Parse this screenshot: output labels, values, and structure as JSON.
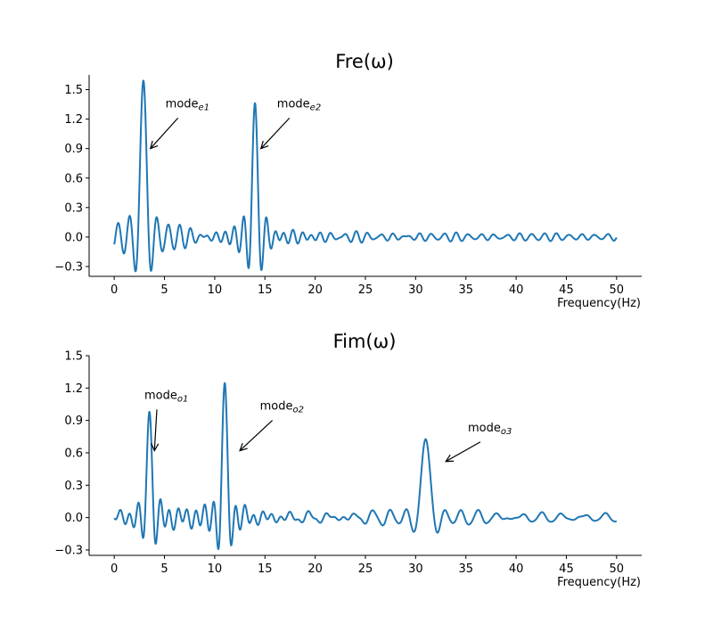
{
  "chart_data": [
    {
      "type": "line",
      "title": "Fre(ω)",
      "xlabel": "Frequency(Hz)",
      "ylabel": "",
      "xlim": [
        -2.5,
        52.5
      ],
      "ylim": [
        -0.4,
        1.65
      ],
      "xticks": [
        0,
        5,
        10,
        15,
        20,
        25,
        30,
        35,
        40,
        45,
        50
      ],
      "yticks": [
        -0.3,
        0.0,
        0.3,
        0.6,
        0.9,
        1.2,
        1.5
      ],
      "ytick_labels": [
        "−0.3",
        "0.0",
        "0.3",
        "0.6",
        "0.9",
        "1.2",
        "1.5"
      ],
      "series_color": "#1f77b4",
      "peaks": [
        {
          "freq": 2.9,
          "amp": 1.55,
          "width": 0.55
        },
        {
          "freq": 14.0,
          "amp": 1.32,
          "width": 0.45
        }
      ],
      "ripple": {
        "amp": 0.03,
        "period": 1.25
      },
      "annotations": [
        {
          "label": "mode",
          "sub": "e1",
          "text_x": 5.1,
          "text_y": 1.32,
          "target_x": 3.6,
          "target_y": 0.9
        },
        {
          "label": "mode",
          "sub": "e2",
          "text_x": 16.2,
          "text_y": 1.32,
          "target_x": 14.6,
          "target_y": 0.9
        }
      ]
    },
    {
      "type": "line",
      "title": "Fim(ω)",
      "xlabel": "Frequency(Hz)",
      "ylabel": "",
      "xlim": [
        -2.5,
        52.5
      ],
      "ylim": [
        -0.35,
        1.5
      ],
      "xticks": [
        0,
        5,
        10,
        15,
        20,
        25,
        30,
        35,
        40,
        45,
        50
      ],
      "yticks": [
        -0.3,
        0.0,
        0.3,
        0.6,
        0.9,
        1.2,
        1.5
      ],
      "ytick_labels": [
        "−0.3",
        "0.0",
        "0.3",
        "0.6",
        "0.9",
        "1.2",
        "1.5"
      ],
      "series_color": "#1f77b4",
      "peaks": [
        {
          "freq": 3.5,
          "amp": 0.98,
          "width": 0.45
        },
        {
          "freq": 11.0,
          "amp": 1.2,
          "width": 0.45
        },
        {
          "freq": 31.0,
          "amp": 0.75,
          "width": 0.8
        }
      ],
      "ripple": {
        "amp": 0.03,
        "period": 2.1
      },
      "annotations": [
        {
          "label": "mode",
          "sub": "o1",
          "text_x": 3.0,
          "text_y": 1.1,
          "target_x": 4.0,
          "target_y": 0.62
        },
        {
          "label": "mode",
          "sub": "o2",
          "text_x": 14.5,
          "text_y": 1.0,
          "target_x": 12.5,
          "target_y": 0.62
        },
        {
          "label": "mode",
          "sub": "o3",
          "text_x": 35.2,
          "text_y": 0.8,
          "target_x": 33.0,
          "target_y": 0.52
        }
      ]
    }
  ]
}
